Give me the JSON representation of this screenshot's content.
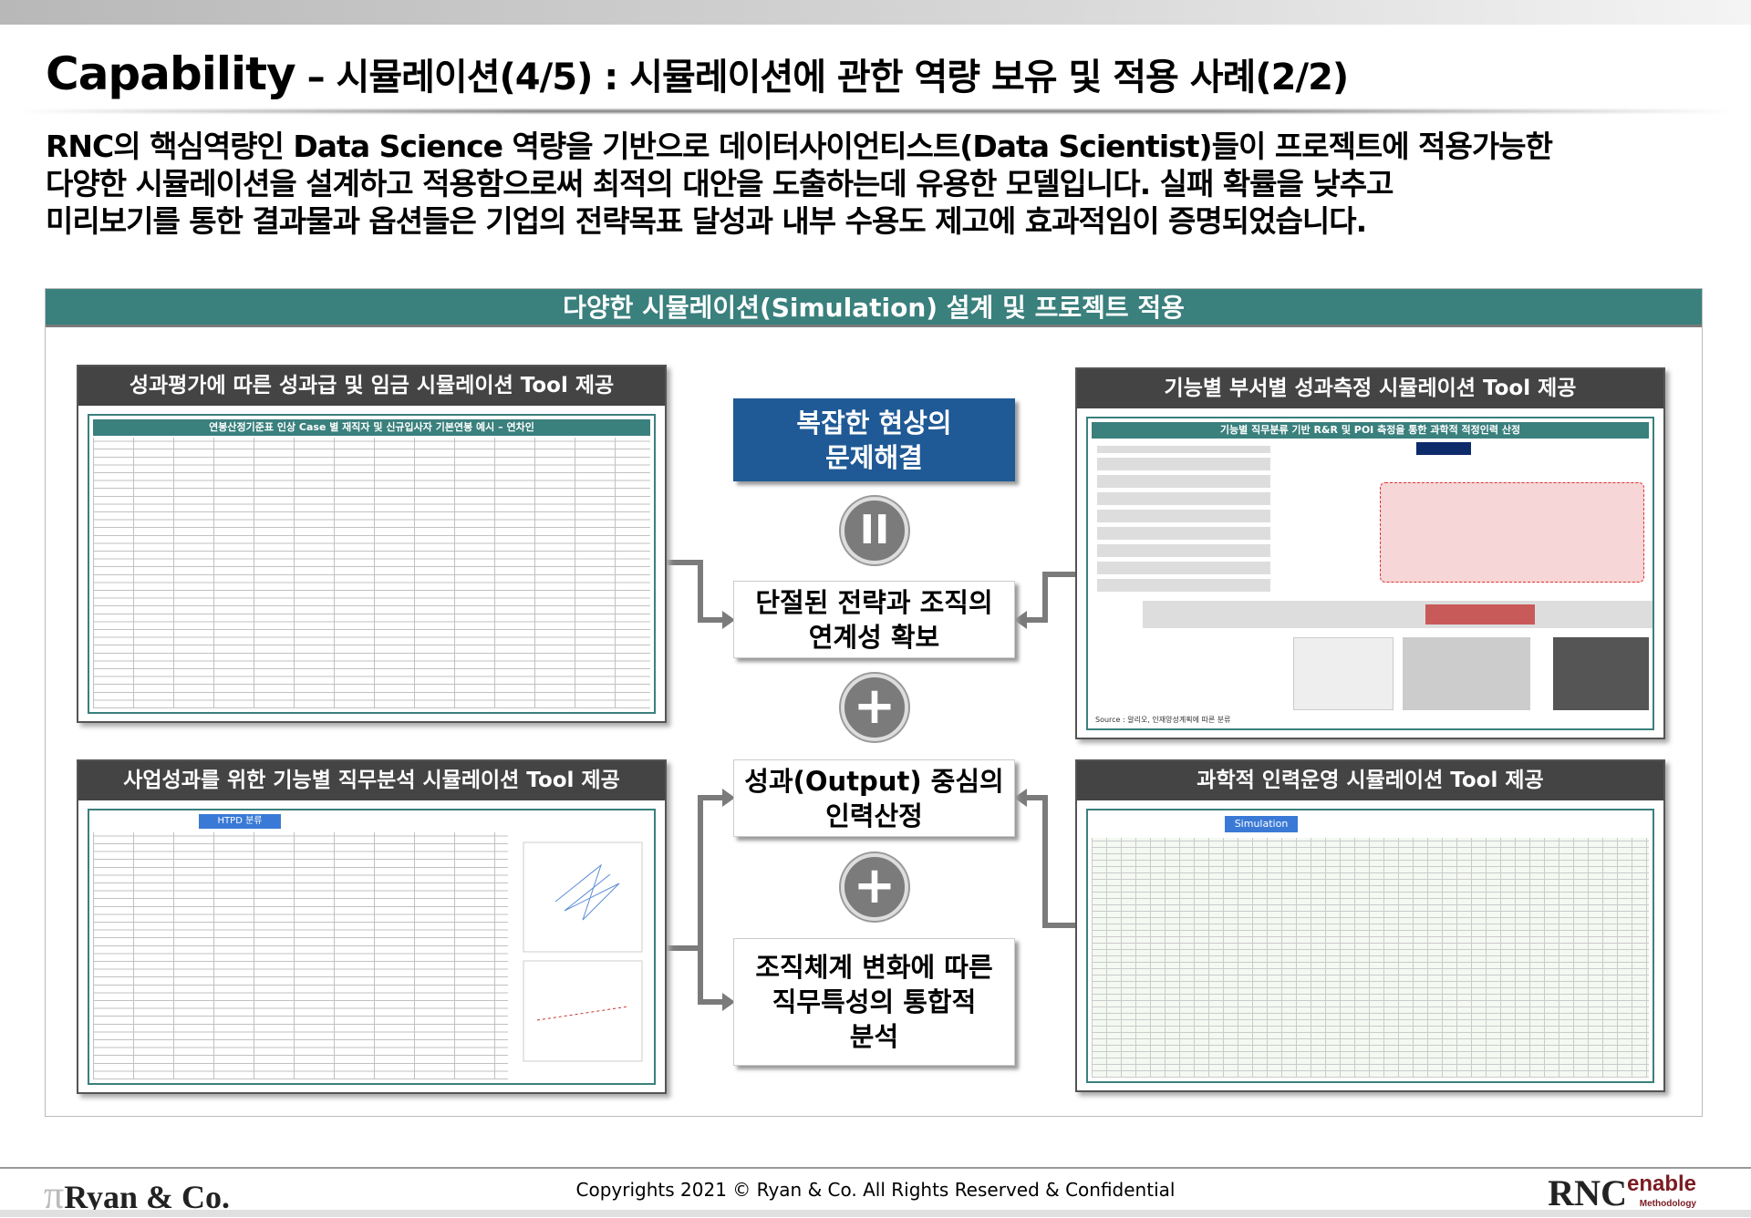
{
  "header": {
    "title_en": "Capability",
    "title_ko": " – 시뮬레이션(4/5) : 시뮬레이션에 관한 역량 보유 및 적용 사례(2/2)"
  },
  "intro": [
    "RNC의 핵심역량인 Data Science 역량을 기반으로 데이터사이언티스트(Data Scientist)들이 프로젝트에 적용가능한",
    "다양한 시뮬레이션을 설계하고 적용함으로써 최적의 대안을 도출하는데 유용한 모델입니다. 실패 확률을 낮추고",
    "미리보기를 통한 결과물과 옵션들은 기업의 전략목표 달성과 내부 수용도 제고에 효과적임이 증명되었습니다."
  ],
  "banner": "다양한 시뮬레이션(Simulation) 설계 및 프로젝트 적용",
  "panels": {
    "top_left": {
      "title": "성과평가에 따른 성과급 및 임금 시뮬레이션 Tool 제공",
      "thumb_title": "연봉산정기준표 인상 Case 별 재직자 및 신규입사자 기본연봉 예시 – 연차인"
    },
    "bottom_left": {
      "title": "사업성과를 위한 기능별 직무분석 시뮬레이션 Tool 제공",
      "thumb_title": "HTPD 분류"
    },
    "top_right": {
      "title": "기능별 부서별 성과측정 시뮬레이션 Tool 제공",
      "thumb_title": "기능별 직무분류 기반 R&R 및 POI 측정을 통한 과학적 적정인력 산정",
      "source": "Source : 알리오, 인재양성계획에 따른 분류"
    },
    "bottom_right": {
      "title": "과학적 인력운영 시뮬레이션 Tool 제공",
      "thumb_title": "Simulation"
    }
  },
  "center": {
    "box1": "복잡한 현상의\n문제해결",
    "pause_symbol": "II",
    "box2": "단절된 전략과 조직의\n연계성 확보",
    "plus1": "+",
    "box3": "성과(Output) 중심의\n인력산정",
    "plus2": "+",
    "box4": "조직체계 변화에 따른\n직무특성의 통합적\n분석"
  },
  "colors": {
    "teal": "#3a807d",
    "blue": "#1f5a96",
    "dark_header": "#444444",
    "connector": "#7b7b7b"
  },
  "footer": {
    "logo": "Ryan & Co.",
    "copyright": "Copyrights 2021 © Ryan & Co. All Rights Reserved & Confidential",
    "brand": "RNC",
    "brand_sub": "enable",
    "brand_sub2": "Methodology"
  }
}
